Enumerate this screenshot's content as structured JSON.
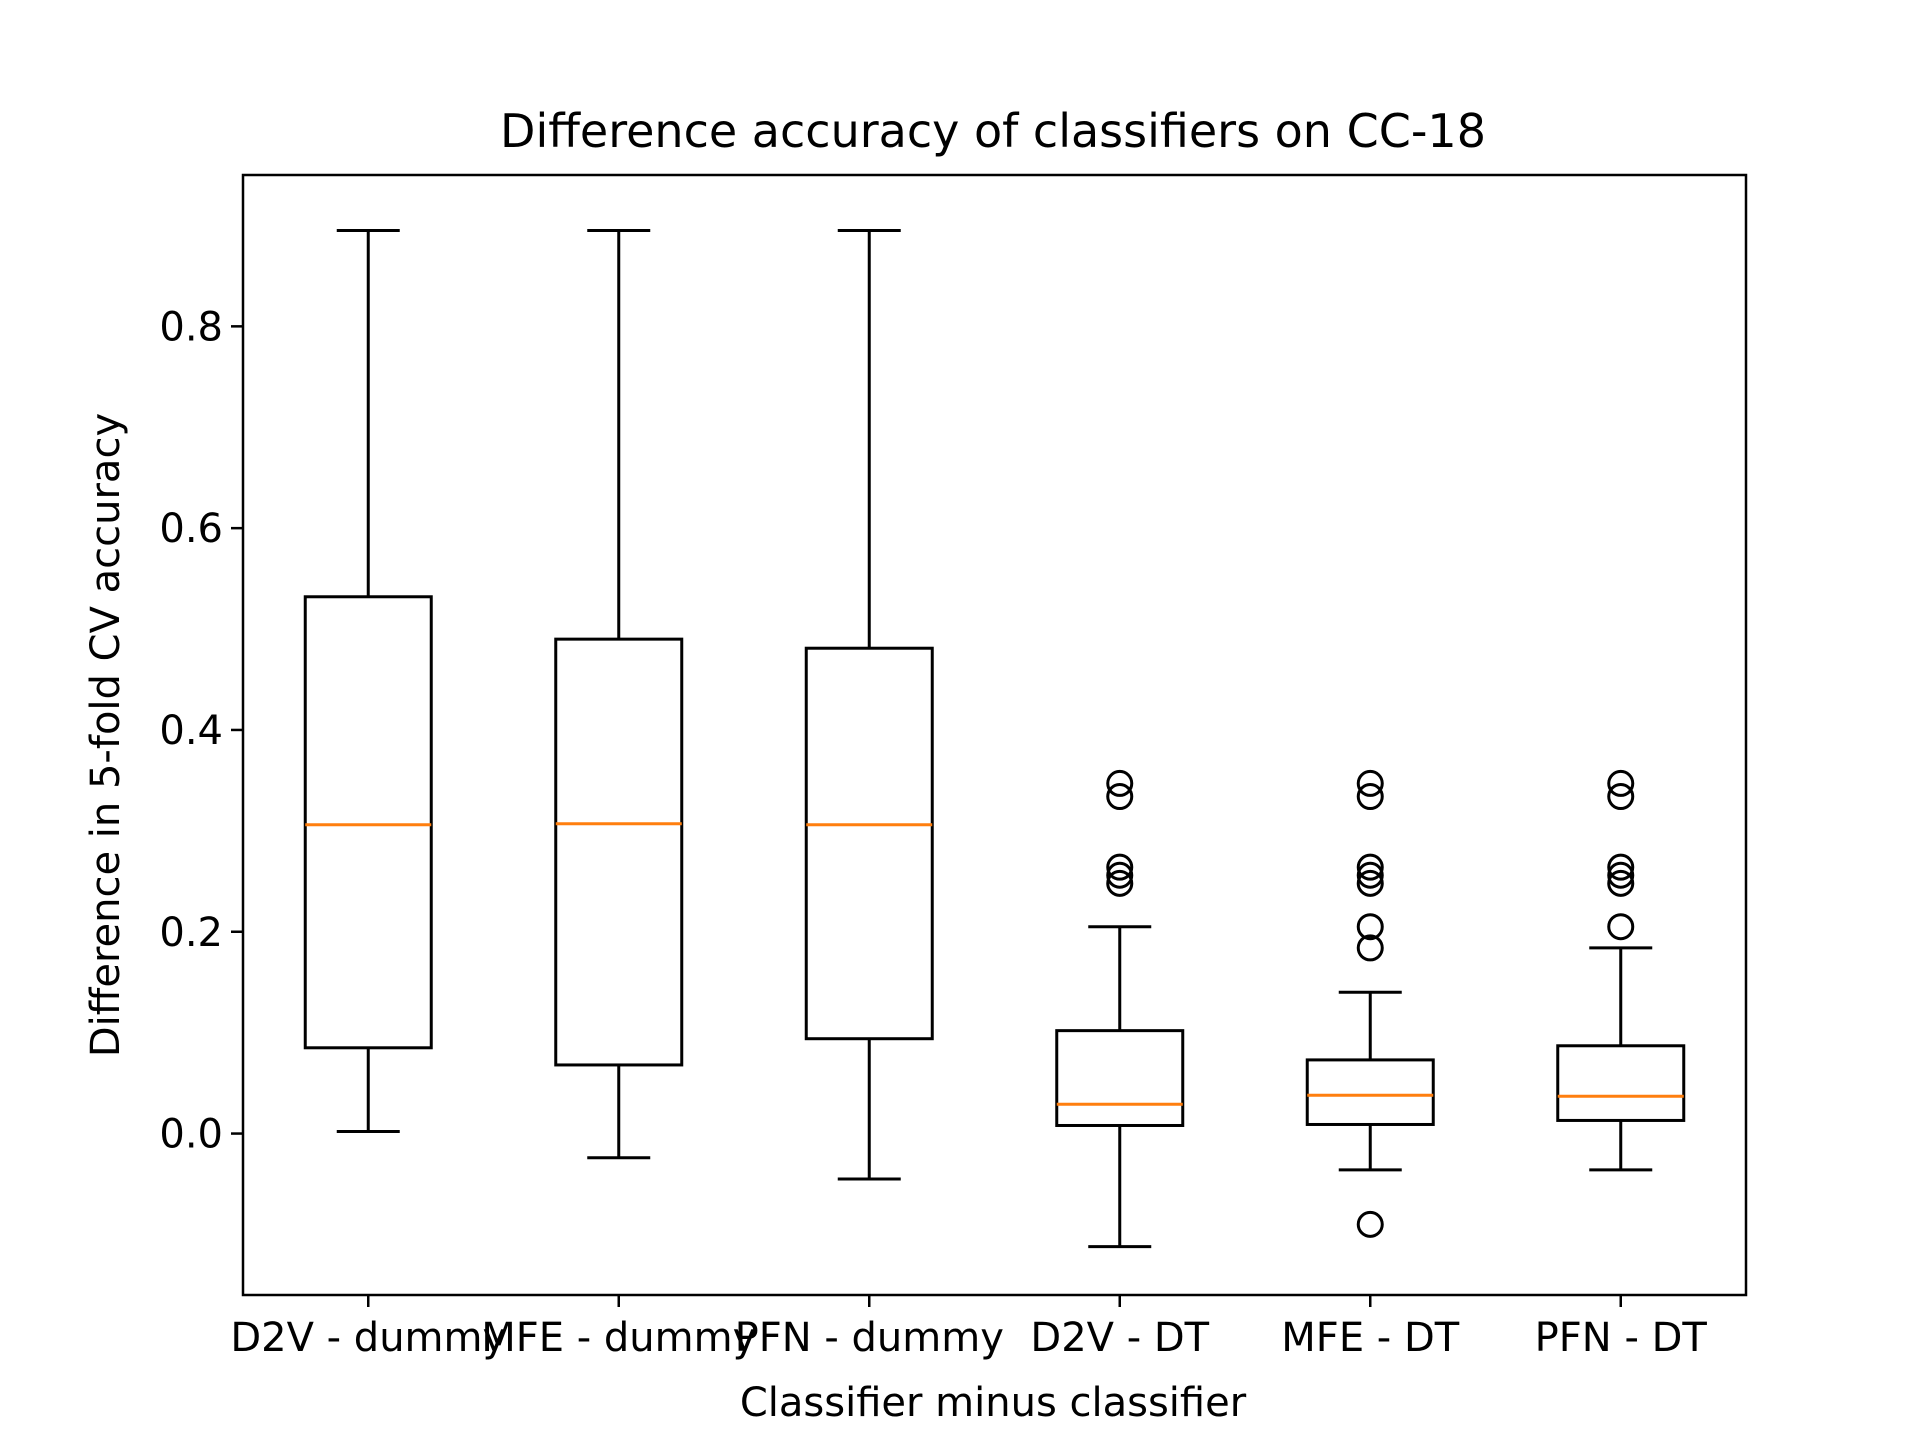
{
  "chart_data": {
    "type": "box",
    "title": "Difference accuracy of classifiers on CC-18",
    "xlabel": "Classifier minus classifier",
    "ylabel": "Difference in 5-fold CV accuracy",
    "ylim": [
      -0.16,
      0.95
    ],
    "yticks": [
      {
        "value": 0.0,
        "label": "0.0"
      },
      {
        "value": 0.2,
        "label": "0.2"
      },
      {
        "value": 0.4,
        "label": "0.4"
      },
      {
        "value": 0.6,
        "label": "0.6"
      },
      {
        "value": 0.8,
        "label": "0.8"
      }
    ],
    "grid": false,
    "colors": {
      "box": "#000000",
      "median": "#ff7f0e"
    },
    "categories": [
      "D2V - dummy",
      "MFE - dummy",
      "PFN - dummy",
      "D2V - DT",
      "MFE - DT",
      "PFN - DT"
    ],
    "boxes": [
      {
        "whisker_low": 0.002,
        "q1": 0.085,
        "median": 0.306,
        "q3": 0.532,
        "whisker_high": 0.895,
        "outliers": []
      },
      {
        "whisker_low": -0.024,
        "q1": 0.068,
        "median": 0.307,
        "q3": 0.49,
        "whisker_high": 0.895,
        "outliers": []
      },
      {
        "whisker_low": -0.045,
        "q1": 0.094,
        "median": 0.306,
        "q3": 0.481,
        "whisker_high": 0.895,
        "outliers": []
      },
      {
        "whisker_low": -0.112,
        "q1": 0.008,
        "median": 0.029,
        "q3": 0.102,
        "whisker_high": 0.205,
        "outliers": [
          0.347,
          0.334,
          0.264,
          0.256,
          0.248
        ]
      },
      {
        "whisker_low": -0.036,
        "q1": 0.009,
        "median": 0.038,
        "q3": 0.073,
        "whisker_high": 0.14,
        "outliers": [
          0.347,
          0.334,
          0.264,
          0.256,
          0.248,
          0.205,
          0.184,
          -0.09
        ]
      },
      {
        "whisker_low": -0.036,
        "q1": 0.013,
        "median": 0.037,
        "q3": 0.087,
        "whisker_high": 0.184,
        "outliers": [
          0.347,
          0.334,
          0.264,
          0.256,
          0.248,
          0.205
        ]
      }
    ]
  }
}
